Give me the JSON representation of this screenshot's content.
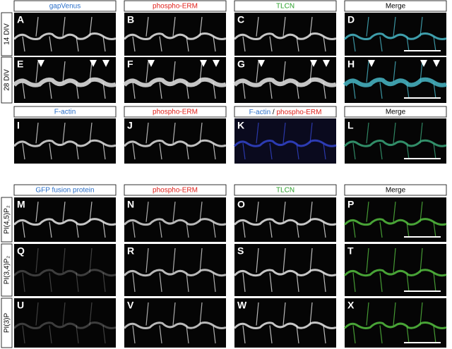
{
  "sections": [
    {
      "headers": [
        "gapVenus",
        "phospho-ERM",
        "TLCN",
        "Merge"
      ],
      "rows": [
        {
          "label": "14 DIV",
          "panels": [
            "A",
            "B",
            "C",
            "D"
          ]
        },
        {
          "label": "28 DIV",
          "panels": [
            "E",
            "F",
            "G",
            "H"
          ]
        }
      ]
    },
    {
      "headers": [
        "F-actin",
        "phospho-ERM",
        [
          "F-actin",
          "/",
          "phospho-ERM"
        ],
        "Merge"
      ],
      "rows": [
        {
          "panels": [
            "I",
            "J",
            "K",
            "L"
          ]
        }
      ]
    },
    {
      "headers": [
        "GFP fusion protein",
        "phospho-ERM",
        "TLCN",
        "Merge"
      ],
      "rows": [
        {
          "label": "PI(4,5)P₂",
          "panels": [
            "M",
            "N",
            "O",
            "P"
          ]
        },
        {
          "label": "PI(3,4)P₂",
          "panels": [
            "Q",
            "R",
            "S",
            "T"
          ]
        },
        {
          "label": "PI(3)P",
          "panels": [
            "U",
            "V",
            "W",
            "X"
          ]
        }
      ]
    }
  ]
}
